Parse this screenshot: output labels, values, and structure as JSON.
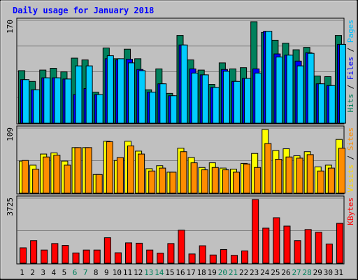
{
  "chart_data": {
    "type": "bar",
    "title": "Daily usage for January 2018",
    "categories": [
      "1",
      "2",
      "3",
      "4",
      "5",
      "6",
      "7",
      "8",
      "9",
      "10",
      "11",
      "12",
      "13",
      "14",
      "15",
      "16",
      "17",
      "18",
      "19",
      "20",
      "21",
      "22",
      "23",
      "24",
      "25",
      "26",
      "27",
      "28",
      "29",
      "30",
      "31"
    ],
    "weekend_days": [
      "6",
      "7",
      "13",
      "14",
      "20",
      "21",
      "27",
      "28"
    ],
    "panels": [
      {
        "name": "hits-files-pages",
        "ylim": [
          0,
          170
        ],
        "max_label": "170",
        "axis_labels": [
          {
            "text": "Hits",
            "color": "#00805c"
          },
          {
            "text": "Files",
            "color": "#0000ff"
          },
          {
            "text": "Pages",
            "color": "#00c0ff"
          }
        ],
        "series": [
          {
            "name": "Hits",
            "color": "#00805c",
            "values": [
              88,
              70,
              89,
              92,
              86,
              109,
              106,
              52,
              126,
              108,
              124,
              108,
              56,
              91,
              50,
              147,
              106,
              89,
              65,
              101,
              91,
              93,
              170,
              152,
              139,
              134,
              123,
              127,
              79,
              78,
              147
            ]
          },
          {
            "name": "Files",
            "color": "#0000ff",
            "values": [
              73,
              56,
              76,
              76,
              74,
              48,
              58,
              48,
              108,
              106,
              107,
              90,
              52,
              66,
              46,
              131,
              91,
              81,
              60,
              90,
              70,
              75,
              91,
              154,
              116,
              114,
              104,
              118,
              66,
              63,
              132
            ]
          },
          {
            "name": "Pages",
            "color": "#00ccff",
            "values": [
              73,
              56,
              76,
              76,
              74,
              96,
              96,
              48,
              113,
              108,
              101,
              88,
              52,
              66,
              46,
              131,
              84,
              81,
              60,
              87,
              70,
              75,
              84,
              154,
              111,
              114,
              96,
              117,
              66,
              63,
              132
            ]
          }
        ]
      },
      {
        "name": "visits-sites",
        "ylim": [
          0,
          109
        ],
        "max_label": "109",
        "axis_labels": [
          {
            "text": "Visits",
            "color": "#ffd700"
          },
          {
            "text": "Sites",
            "color": "#ff8c00"
          }
        ],
        "series": [
          {
            "name": "Visits",
            "color": "#ffff00",
            "values": [
              55,
              48,
              67,
              69,
              55,
              78,
              78,
              32,
              89,
              56,
              89,
              72,
              42,
              47,
              36,
              77,
              61,
              44,
              52,
              43,
              41,
              51,
              68,
              109,
              73,
              76,
              64,
              71,
              45,
              48,
              92
            ]
          },
          {
            "name": "Sites",
            "color": "#ff8c00",
            "values": [
              56,
              41,
              62,
              65,
              48,
              78,
              78,
              32,
              88,
              61,
              81,
              67,
              38,
              43,
              36,
              71,
              52,
              40,
              44,
              40,
              36,
              50,
              44,
              85,
              58,
              62,
              60,
              66,
              38,
              43,
              77
            ]
          }
        ]
      },
      {
        "name": "kbytes",
        "ylim": [
          0,
          3725
        ],
        "max_label": "3725",
        "axis_labels": [
          {
            "text": "KBytes",
            "color": "#ff0000"
          }
        ],
        "series": [
          {
            "name": "KBytes",
            "color": "#ff0000",
            "values": [
              900,
              1320,
              770,
              1150,
              1040,
              600,
              770,
              770,
              1490,
              610,
              1190,
              1170,
              770,
              590,
              1150,
              1930,
              540,
              1020,
              480,
              800,
              460,
              720,
              3725,
              2050,
              2660,
              2170,
              1320,
              1970,
              1810,
              1120,
              2330
            ]
          }
        ]
      }
    ]
  }
}
